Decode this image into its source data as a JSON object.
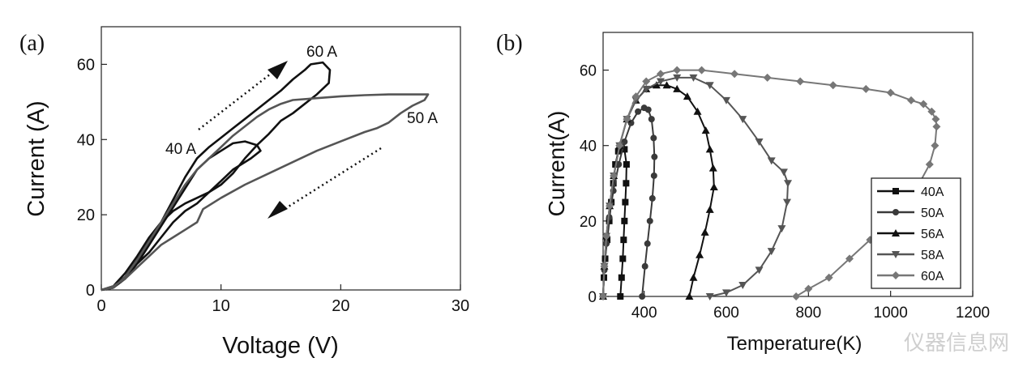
{
  "chart_data": [
    {
      "panel": "(a)",
      "type": "line",
      "xlabel": "Voltage (V)",
      "ylabel": "Current (A)",
      "xlim": [
        0,
        30
      ],
      "ylim": [
        0,
        70
      ],
      "xticks": [
        0,
        10,
        20,
        30
      ],
      "yticks": [
        0,
        20,
        40,
        60
      ],
      "grid": false,
      "annotations": [
        "60 A",
        "40 A",
        "50 A"
      ],
      "series": [
        {
          "name": "40 A loop",
          "color": "#111111",
          "points": [
            [
              0,
              0
            ],
            [
              1,
              0.6
            ],
            [
              2,
              3
            ],
            [
              3,
              7
            ],
            [
              4,
              12
            ],
            [
              5,
              17
            ],
            [
              6,
              22
            ],
            [
              7,
              27
            ],
            [
              8,
              32
            ],
            [
              9,
              35
            ],
            [
              10,
              37
            ],
            [
              11,
              39
            ],
            [
              12,
              39.5
            ],
            [
              13,
              38.5
            ],
            [
              13.3,
              37
            ],
            [
              12.5,
              35
            ],
            [
              11,
              32
            ],
            [
              10,
              29
            ],
            [
              9,
              26
            ],
            [
              8,
              23
            ],
            [
              7,
              21
            ],
            [
              6,
              18
            ],
            [
              5,
              14
            ],
            [
              4,
              10
            ],
            [
              3,
              7
            ],
            [
              2,
              3.5
            ],
            [
              1,
              0.8
            ],
            [
              0,
              0
            ]
          ]
        },
        {
          "name": "60 A loop",
          "color": "#111111",
          "points": [
            [
              0,
              0
            ],
            [
              1,
              0.6
            ],
            [
              2,
              3.5
            ],
            [
              3,
              8
            ],
            [
              4,
              13
            ],
            [
              5,
              18
            ],
            [
              6,
              24
            ],
            [
              7,
              30
            ],
            [
              8,
              35
            ],
            [
              9,
              38
            ],
            [
              10,
              40.5
            ],
            [
              11,
              43
            ],
            [
              12,
              45.5
            ],
            [
              13,
              48
            ],
            [
              14,
              50.5
            ],
            [
              15,
              53
            ],
            [
              16,
              56
            ],
            [
              17,
              58.5
            ],
            [
              17.5,
              60
            ],
            [
              18.5,
              60.5
            ],
            [
              19.1,
              58.5
            ],
            [
              19,
              55
            ],
            [
              18,
              52
            ],
            [
              17,
              49.5
            ],
            [
              16,
              47
            ],
            [
              15,
              45
            ],
            [
              14,
              41.5
            ],
            [
              13,
              38.5
            ],
            [
              12,
              35
            ],
            [
              11,
              31
            ],
            [
              10,
              28
            ],
            [
              9,
              26
            ],
            [
              8,
              24.5
            ],
            [
              7,
              23
            ],
            [
              6,
              21
            ],
            [
              5,
              18
            ],
            [
              4,
              14
            ],
            [
              3,
              9
            ],
            [
              2,
              4.5
            ],
            [
              1,
              1
            ],
            [
              0,
              0
            ]
          ]
        },
        {
          "name": "50 A loop",
          "color": "#555555",
          "points": [
            [
              0,
              0
            ],
            [
              1,
              0.6
            ],
            [
              2,
              3.5
            ],
            [
              3,
              8
            ],
            [
              4,
              13
            ],
            [
              5,
              18
            ],
            [
              6,
              23
            ],
            [
              7,
              28
            ],
            [
              8,
              32
            ],
            [
              9,
              35
            ],
            [
              10,
              38
            ],
            [
              11,
              41
            ],
            [
              12,
              43.5
            ],
            [
              13,
              46
            ],
            [
              14,
              48
            ],
            [
              15,
              49.5
            ],
            [
              16,
              50.5
            ],
            [
              18,
              51
            ],
            [
              20,
              51.5
            ],
            [
              22,
              51.8
            ],
            [
              24,
              52
            ],
            [
              26,
              52
            ],
            [
              27.3,
              52
            ],
            [
              27,
              50.5
            ],
            [
              26,
              49
            ],
            [
              25,
              47
            ],
            [
              24,
              44.5
            ],
            [
              23,
              43
            ],
            [
              22,
              42
            ],
            [
              20,
              39.5
            ],
            [
              18,
              37
            ],
            [
              16,
              34
            ],
            [
              14,
              31
            ],
            [
              12,
              28
            ],
            [
              10,
              24.5
            ],
            [
              8.5,
              21.5
            ],
            [
              8,
              18
            ],
            [
              7,
              16
            ],
            [
              6,
              14
            ],
            [
              5,
              12
            ],
            [
              4,
              9
            ],
            [
              3,
              6
            ],
            [
              2,
              3
            ],
            [
              1,
              1
            ],
            [
              0,
              0
            ]
          ]
        }
      ]
    },
    {
      "panel": "(b)",
      "type": "line",
      "xlabel": "Temperature(K)",
      "ylabel": "Current(A)",
      "xlim": [
        300,
        1200
      ],
      "ylim": [
        0,
        70
      ],
      "xticks": [
        400,
        600,
        800,
        1000,
        1200
      ],
      "yticks": [
        0,
        20,
        40,
        60
      ],
      "grid": false,
      "legend_position": "bottom-right",
      "series": [
        {
          "name": "40A",
          "marker": "square",
          "color": "#111111",
          "points": [
            [
              300,
              0
            ],
            [
              302,
              5
            ],
            [
              305,
              10
            ],
            [
              310,
              15
            ],
            [
              315,
              20
            ],
            [
              320,
              25
            ],
            [
              325,
              30
            ],
            [
              330,
              35
            ],
            [
              337,
              38.5
            ],
            [
              345,
              40
            ],
            [
              352,
              39
            ],
            [
              357,
              35
            ],
            [
              356,
              30
            ],
            [
              354,
              25
            ],
            [
              352,
              20
            ],
            [
              350,
              15
            ],
            [
              348,
              10
            ],
            [
              345,
              5
            ],
            [
              342,
              0
            ]
          ]
        },
        {
          "name": "50A",
          "marker": "circle",
          "color": "#3a3a3a",
          "points": [
            [
              300,
              0
            ],
            [
              303,
              7
            ],
            [
              308,
              14
            ],
            [
              315,
              21
            ],
            [
              325,
              28
            ],
            [
              338,
              35
            ],
            [
              352,
              41
            ],
            [
              368,
              46
            ],
            [
              385,
              49
            ],
            [
              400,
              50
            ],
            [
              410,
              49.5
            ],
            [
              418,
              47
            ],
            [
              423,
              42
            ],
            [
              425,
              37
            ],
            [
              424,
              32
            ],
            [
              420,
              26
            ],
            [
              414,
              20
            ],
            [
              408,
              14
            ],
            [
              402,
              8
            ],
            [
              395,
              0
            ]
          ]
        },
        {
          "name": "56A",
          "marker": "triangle-up",
          "color": "#111111",
          "points": [
            [
              300,
              0
            ],
            [
              303,
              8
            ],
            [
              308,
              16
            ],
            [
              316,
              24
            ],
            [
              326,
              32
            ],
            [
              340,
              40
            ],
            [
              358,
              47
            ],
            [
              380,
              52
            ],
            [
              405,
              55
            ],
            [
              430,
              56
            ],
            [
              455,
              56
            ],
            [
              480,
              55
            ],
            [
              505,
              53
            ],
            [
              530,
              49
            ],
            [
              550,
              44
            ],
            [
              560,
              39
            ],
            [
              568,
              34
            ],
            [
              570,
              29
            ],
            [
              560,
              23
            ],
            [
              548,
              17
            ],
            [
              535,
              11
            ],
            [
              520,
              5
            ],
            [
              510,
              0
            ]
          ]
        },
        {
          "name": "58A",
          "marker": "triangle-down",
          "color": "#555555",
          "points": [
            [
              300,
              0
            ],
            [
              303,
              8
            ],
            [
              308,
              16
            ],
            [
              316,
              24
            ],
            [
              326,
              32
            ],
            [
              340,
              40
            ],
            [
              358,
              47
            ],
            [
              380,
              52
            ],
            [
              405,
              55
            ],
            [
              440,
              57
            ],
            [
              480,
              58
            ],
            [
              520,
              58
            ],
            [
              560,
              56
            ],
            [
              600,
              52
            ],
            [
              640,
              47
            ],
            [
              680,
              41
            ],
            [
              710,
              36
            ],
            [
              740,
              33
            ],
            [
              750,
              30
            ],
            [
              748,
              25
            ],
            [
              735,
              18
            ],
            [
              710,
              12
            ],
            [
              680,
              7
            ],
            [
              640,
              3
            ],
            [
              600,
              1
            ],
            [
              560,
              0
            ]
          ]
        },
        {
          "name": "60A",
          "marker": "diamond",
          "color": "#777777",
          "points": [
            [
              300,
              0
            ],
            [
              303,
              8
            ],
            [
              308,
              16
            ],
            [
              316,
              24
            ],
            [
              326,
              32
            ],
            [
              340,
              40
            ],
            [
              358,
              47
            ],
            [
              380,
              53
            ],
            [
              405,
              57
            ],
            [
              440,
              59
            ],
            [
              480,
              60
            ],
            [
              540,
              60
            ],
            [
              620,
              59
            ],
            [
              700,
              58
            ],
            [
              780,
              57
            ],
            [
              860,
              56
            ],
            [
              940,
              55
            ],
            [
              1000,
              54
            ],
            [
              1050,
              52
            ],
            [
              1080,
              51
            ],
            [
              1100,
              49
            ],
            [
              1110,
              47
            ],
            [
              1112,
              45
            ],
            [
              1108,
              40
            ],
            [
              1095,
              35
            ],
            [
              1070,
              30
            ],
            [
              1040,
              25
            ],
            [
              1000,
              20
            ],
            [
              950,
              15
            ],
            [
              900,
              10
            ],
            [
              850,
              5
            ],
            [
              800,
              2
            ],
            [
              770,
              0
            ]
          ]
        }
      ]
    }
  ],
  "watermark": "仪器信息网"
}
